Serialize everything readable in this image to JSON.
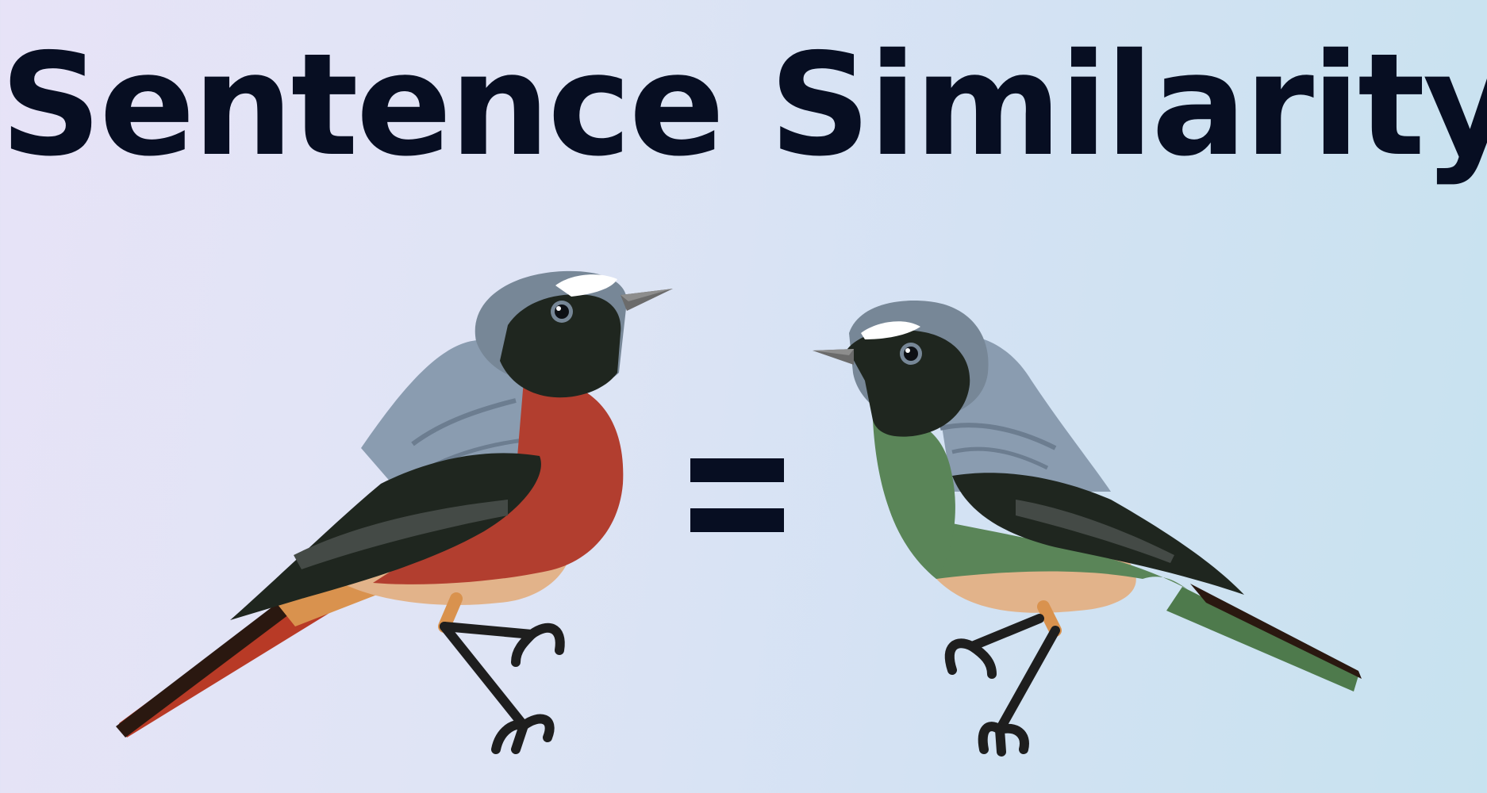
{
  "title": "Sentence Similarity",
  "operator": "=",
  "birds": [
    {
      "name": "red-bird",
      "breast_color": "#b23e2f",
      "tail_color": "#b83a26"
    },
    {
      "name": "green-bird",
      "breast_color": "#5a8558",
      "tail_color": "#4e7a4c"
    }
  ],
  "colors": {
    "text": "#070e22",
    "head_gray": "#778797",
    "wing_gray": "#8a9cb0",
    "black": "#1f261f",
    "belly": "#e2b38a",
    "legs": "#1e1e1e"
  }
}
